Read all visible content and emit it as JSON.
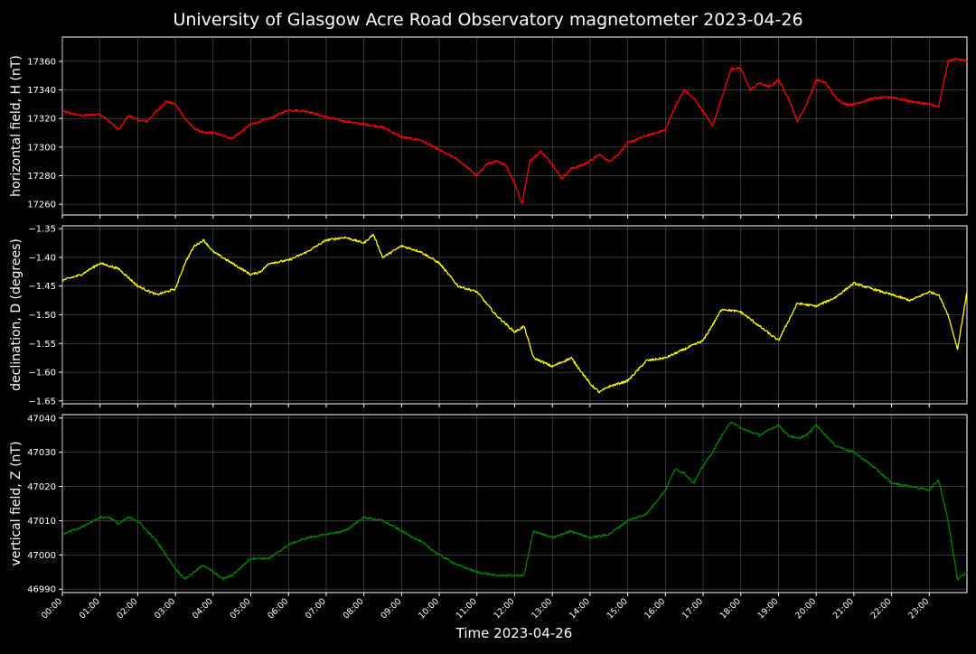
{
  "chart_data": [
    {
      "type": "line",
      "title": "University of Glasgow Acre Road Observatory magnetometer 2023-04-26",
      "ylabel": "horizontal field, H (nT)",
      "ylim": [
        17252.5,
        17377
      ],
      "yticks": [
        17260,
        17280,
        17300,
        17320,
        17340,
        17360
      ],
      "color": "#ff0000",
      "grid": true,
      "series": [
        {
          "x": [
            0,
            0.5,
            1,
            1.25,
            1.5,
            1.75,
            2,
            2.25,
            2.5,
            2.75,
            3,
            3.25,
            3.5,
            3.75,
            4,
            4.5,
            5,
            5.5,
            6,
            6.5,
            7,
            7.5,
            8,
            8.5,
            9,
            9.5,
            10,
            10.5,
            11,
            11.25,
            11.5,
            11.75,
            12,
            12.2,
            12.4,
            12.7,
            13,
            13.25,
            13.5,
            13.75,
            14,
            14.25,
            14.5,
            14.75,
            15,
            15.5,
            16,
            16.25,
            16.5,
            16.75,
            17,
            17.25,
            17.5,
            17.75,
            18,
            18.25,
            18.5,
            18.75,
            19,
            19.25,
            19.5,
            19.75,
            20,
            20.25,
            20.5,
            20.75,
            21,
            21.5,
            22,
            22.5,
            23,
            23.25,
            23.5,
            23.75,
            24
          ],
          "y": [
            17325,
            17322,
            17323,
            17318,
            17312,
            17322,
            17319,
            17318,
            17325,
            17332,
            17330,
            17320,
            17313,
            17310,
            17310,
            17306,
            17316,
            17320,
            17326,
            17325,
            17321,
            17318,
            17316,
            17314,
            17307,
            17305,
            17298,
            17291,
            17280,
            17288,
            17290,
            17288,
            17275,
            17260,
            17290,
            17297,
            17288,
            17278,
            17285,
            17287,
            17290,
            17295,
            17290,
            17295,
            17303,
            17308,
            17312,
            17328,
            17340,
            17334,
            17325,
            17315,
            17335,
            17355,
            17355,
            17340,
            17345,
            17342,
            17347,
            17335,
            17318,
            17330,
            17347,
            17345,
            17335,
            17330,
            17330,
            17334,
            17335,
            17332,
            17330,
            17328,
            17360,
            17362,
            17360
          ]
        }
      ]
    },
    {
      "type": "line",
      "ylabel": "declination, D (degrees)",
      "ylim": [
        -1.655,
        -1.345
      ],
      "yticks": [
        -1.35,
        -1.4,
        -1.45,
        -1.5,
        -1.55,
        -1.6,
        -1.65
      ],
      "color": "#ffff00",
      "grid": true,
      "series": [
        {
          "x": [
            0,
            0.5,
            1,
            1.5,
            2,
            2.5,
            3,
            3.25,
            3.5,
            3.75,
            4,
            4.5,
            5,
            5.25,
            5.5,
            6,
            6.5,
            7,
            7.5,
            8,
            8.25,
            8.5,
            9,
            9.5,
            10,
            10.5,
            11,
            11.5,
            12,
            12.25,
            12.5,
            13,
            13.5,
            14,
            14.25,
            14.5,
            15,
            15.5,
            16,
            16.5,
            17,
            17.5,
            18,
            18.5,
            19,
            19.5,
            20,
            20.5,
            21,
            21.5,
            22,
            22.5,
            23,
            23.25,
            23.5,
            23.75,
            24
          ],
          "y": [
            -1.44,
            -1.43,
            -1.41,
            -1.42,
            -1.45,
            -1.465,
            -1.455,
            -1.41,
            -1.38,
            -1.37,
            -1.39,
            -1.41,
            -1.43,
            -1.425,
            -1.41,
            -1.405,
            -1.39,
            -1.37,
            -1.365,
            -1.375,
            -1.36,
            -1.4,
            -1.38,
            -1.39,
            -1.41,
            -1.45,
            -1.46,
            -1.5,
            -1.53,
            -1.52,
            -1.575,
            -1.59,
            -1.575,
            -1.62,
            -1.635,
            -1.625,
            -1.615,
            -1.58,
            -1.575,
            -1.56,
            -1.545,
            -1.49,
            -1.495,
            -1.52,
            -1.545,
            -1.48,
            -1.485,
            -1.47,
            -1.445,
            -1.455,
            -1.465,
            -1.475,
            -1.46,
            -1.465,
            -1.5,
            -1.56,
            -1.46
          ]
        }
      ]
    },
    {
      "type": "line",
      "ylabel": "vertical field, Z (nT)",
      "xlabel": "Time 2023-04-26",
      "ylim": [
        46989,
        47041
      ],
      "yticks": [
        46990,
        47000,
        47010,
        47020,
        47030,
        47040
      ],
      "xticks": [
        "00:00",
        "01:00",
        "02:00",
        "03:00",
        "04:00",
        "05:00",
        "06:00",
        "07:00",
        "08:00",
        "09:00",
        "10:00",
        "11:00",
        "12:00",
        "13:00",
        "14:00",
        "15:00",
        "16:00",
        "17:00",
        "18:00",
        "19:00",
        "20:00",
        "21:00",
        "22:00",
        "23:00"
      ],
      "color": "#008000",
      "grid": true,
      "series": [
        {
          "x": [
            0,
            0.5,
            1,
            1.25,
            1.5,
            1.75,
            2,
            2.5,
            2.75,
            3,
            3.25,
            3.5,
            3.75,
            4,
            4.25,
            4.5,
            5,
            5.5,
            6,
            6.5,
            7,
            7.5,
            8,
            8.5,
            9,
            9.5,
            10,
            10.5,
            11,
            11.5,
            12,
            12.25,
            12.5,
            13,
            13.5,
            14,
            14.5,
            15,
            15.5,
            16,
            16.25,
            16.5,
            16.75,
            17,
            17.25,
            17.5,
            17.75,
            18,
            18.5,
            19,
            19.25,
            19.5,
            19.75,
            20,
            20.5,
            21,
            21.5,
            22,
            22.5,
            23,
            23.25,
            23.5,
            23.75,
            24
          ],
          "y": [
            47006,
            47008,
            47011,
            47011,
            47009,
            47011,
            47010,
            47004,
            47000,
            46996,
            46993,
            46995,
            46997,
            46995,
            46993,
            46994,
            46999,
            46999,
            47003,
            47005,
            47006,
            47007,
            47011,
            47010,
            47007,
            47004,
            47000,
            46997,
            46995,
            46994,
            46994,
            46994,
            47007,
            47005,
            47007,
            47005,
            47006,
            47010,
            47012,
            47019,
            47025,
            47024,
            47021,
            47026,
            47030,
            47035,
            47039,
            47037,
            47035,
            47038,
            47035,
            47034,
            47035,
            47038,
            47032,
            47030,
            47026,
            47021,
            47020,
            47019,
            47022,
            47010,
            46993,
            46995
          ]
        }
      ]
    }
  ]
}
